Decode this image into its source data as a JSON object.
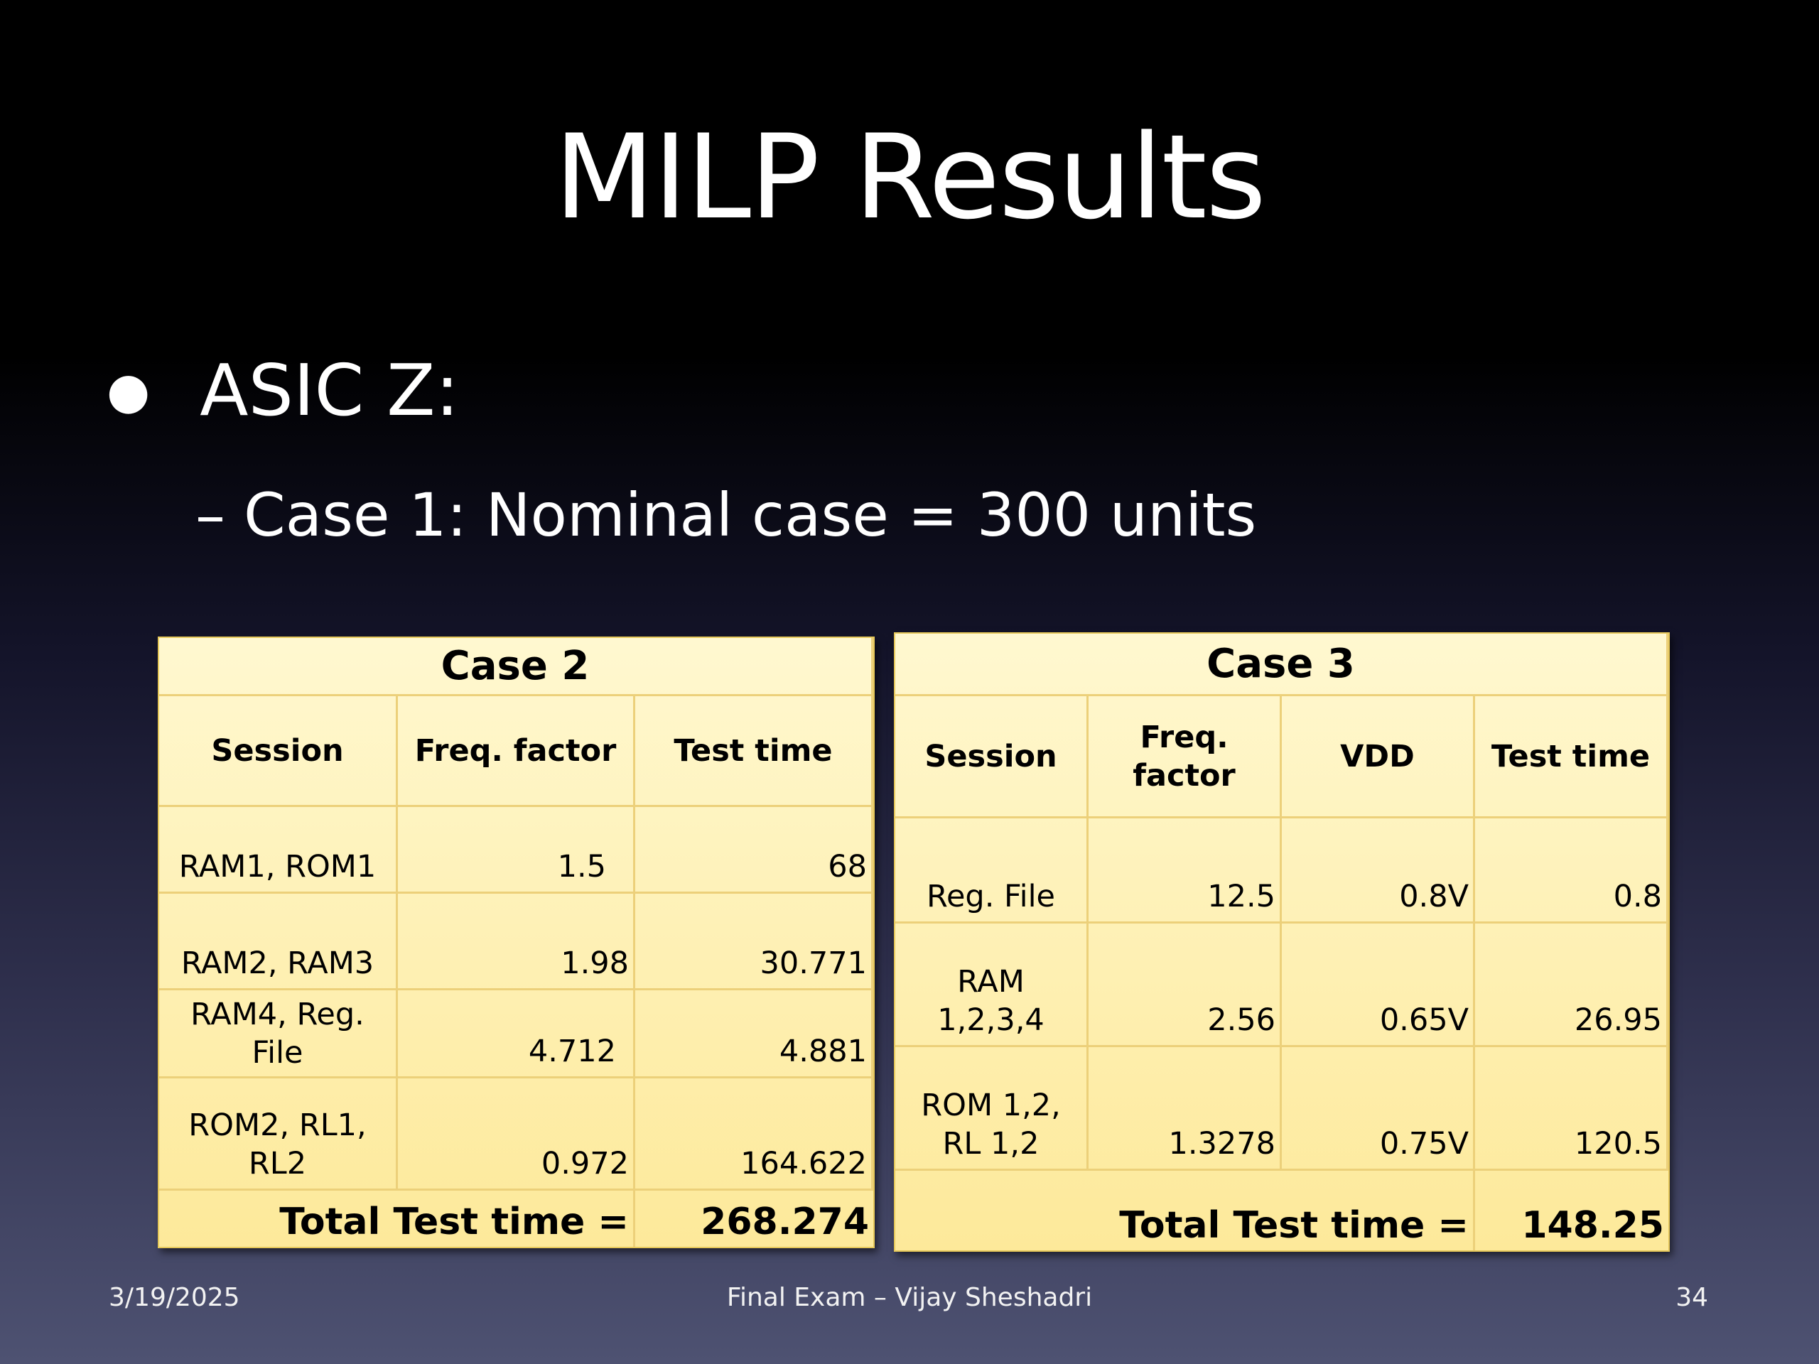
{
  "slide": {
    "title": "MILP Results",
    "bullet": "ASIC Z:",
    "sub_bullet_dash": "–",
    "sub_bullet": "Case 1: Nominal case = 300 units"
  },
  "case2": {
    "caption": "Case 2",
    "headers": [
      "Session",
      "Freq. factor",
      "Test time"
    ],
    "rows": [
      [
        "RAM1, ROM1",
        "1.5",
        "68"
      ],
      [
        "RAM2, RAM3",
        "1.98",
        "30.771"
      ],
      [
        "RAM4, Reg. File",
        "4.712",
        "4.881"
      ],
      [
        "ROM2, RL1, RL2",
        "0.972",
        "164.622"
      ]
    ],
    "total_label": "Total Test time =",
    "total_value": "268.274"
  },
  "case3": {
    "caption": "Case 3",
    "headers": [
      "Session",
      "Freq. factor",
      "VDD",
      "Test time"
    ],
    "rows": [
      [
        "Reg. File",
        "12.5",
        "0.8V",
        "0.8"
      ],
      [
        "RAM 1,2,3,4",
        "2.56",
        "0.65V",
        "26.95"
      ],
      [
        "ROM 1,2, RL 1,2",
        "1.3278",
        "0.75V",
        "120.5"
      ]
    ],
    "total_label": "Total Test time =",
    "total_value": "148.25"
  },
  "footer": {
    "date": "3/19/2025",
    "center": "Final Exam – Vijay Sheshadri",
    "page": "34"
  }
}
